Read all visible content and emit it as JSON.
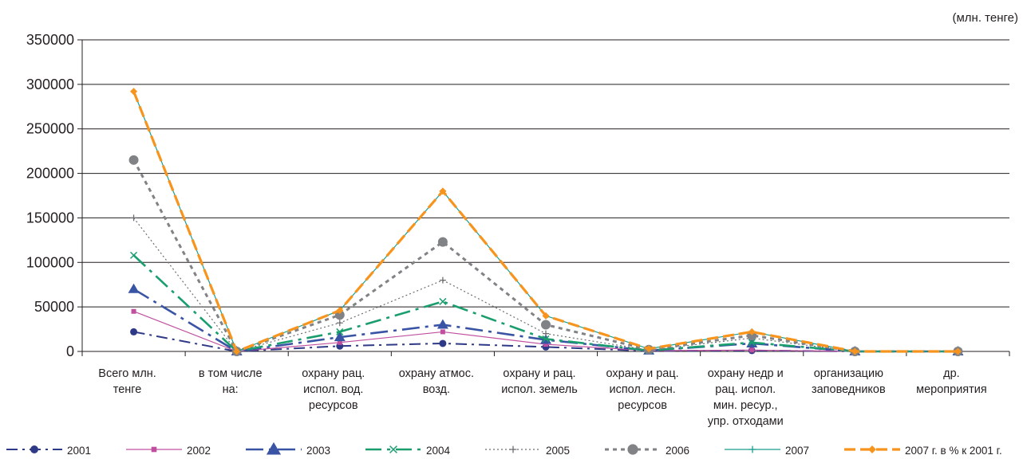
{
  "unit_label": "(млн. тенге)",
  "chart_data": {
    "type": "line",
    "categories": [
      "Всего млн. тенге",
      "в том числе на:",
      "охрану рац. испол. вод. ресурсов",
      "охрану атмос. возд.",
      "охрану и рац. испол. земель",
      "охрану и рац. испол. лесн. ресурсов",
      "охрану недр и рац. испол. мин. ресур., упр. отходами",
      "организацию заповедников",
      "др. мероприятия"
    ],
    "category_lines": [
      [
        "Всего млн.",
        "тенге"
      ],
      [
        "в том числе",
        "на:"
      ],
      [
        "охрану рац.",
        "испол. вод.",
        "ресурсов"
      ],
      [
        "охрану  атмос.",
        "возд."
      ],
      [
        "охрану  и рац.",
        "испол. земель"
      ],
      [
        "охрану  и рац.",
        "испол. лесн.",
        "ресурсов"
      ],
      [
        "охрану недр и",
        "рац. испол.",
        "мин. ресур.,",
        "упр. отходами"
      ],
      [
        "организацию",
        "заповедников"
      ],
      [
        "др.",
        "мероприятия"
      ]
    ],
    "ylim": [
      0,
      350000
    ],
    "yticks": [
      0,
      50000,
      100000,
      150000,
      200000,
      250000,
      300000,
      350000
    ],
    "ytick_labels": [
      "0",
      "50000",
      "100000",
      "150000",
      "200000",
      "250000",
      "300000",
      "350000"
    ],
    "legend_position": "bottom",
    "series": [
      {
        "name": "2001",
        "color": "#2e3a87",
        "dash": "14,6,3,6",
        "width": 2,
        "marker": "circle",
        "values": [
          22000,
          0,
          6000,
          9000,
          5000,
          500,
          1000,
          0,
          0
        ]
      },
      {
        "name": "2002",
        "color": "#c0509f",
        "dash": "",
        "width": 1.2,
        "marker": "square",
        "values": [
          45000,
          0,
          10000,
          22000,
          8000,
          800,
          1500,
          0,
          0
        ]
      },
      {
        "name": "2003",
        "color": "#3954a4",
        "dash": "22,7,4,7",
        "width": 2.6,
        "marker": "triangle",
        "values": [
          70000,
          0,
          16000,
          30000,
          13000,
          1000,
          9000,
          0,
          0
        ]
      },
      {
        "name": "2004",
        "color": "#1a9e6e",
        "dash": "20,7,4,7",
        "width": 2.6,
        "marker": "x",
        "values": [
          108000,
          0,
          22000,
          56000,
          14000,
          1000,
          10000,
          0,
          0
        ]
      },
      {
        "name": "2005",
        "color": "#6d6e71",
        "dash": "2,3",
        "width": 1.2,
        "marker": "plus",
        "values": [
          150000,
          0,
          32000,
          80000,
          20000,
          1500,
          15000,
          0,
          0
        ]
      },
      {
        "name": "2006",
        "color": "#808285",
        "dash": "5,5",
        "width": 3,
        "marker": "bigcircle",
        "values": [
          215000,
          0,
          41000,
          123000,
          30000,
          2000,
          18000,
          0,
          0
        ]
      },
      {
        "name": "2007",
        "color": "#1a9e8e",
        "dash": "",
        "width": 1.2,
        "marker": "plus",
        "values": [
          292000,
          0,
          46000,
          180000,
          40000,
          3000,
          22000,
          0,
          0
        ]
      },
      {
        "name": "2007 г. в % к 2001 г.",
        "color": "#f7941d",
        "dash": "14,6",
        "width": 3.2,
        "marker": "diamond",
        "values": [
          292000,
          0,
          46000,
          180000,
          40000,
          3000,
          22000,
          0,
          0
        ]
      }
    ]
  }
}
